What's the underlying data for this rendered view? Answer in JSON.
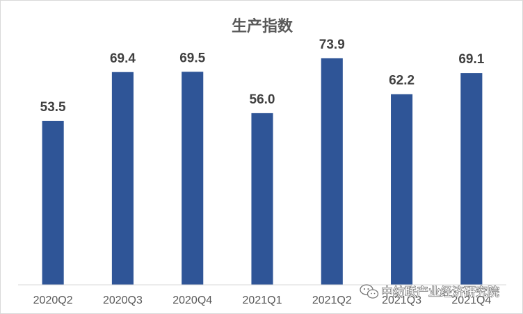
{
  "chart_data": {
    "type": "bar",
    "title": "生产指数",
    "categories": [
      "2020Q2",
      "2020Q3",
      "2020Q4",
      "2021Q1",
      "2021Q2",
      "2021Q3",
      "2021Q4"
    ],
    "values": [
      53.5,
      69.4,
      69.5,
      56.0,
      73.9,
      62.2,
      69.1
    ],
    "value_labels": [
      "53.5",
      "69.4",
      "69.5",
      "56.0",
      "73.9",
      "62.2",
      "69.1"
    ],
    "xlabel": "",
    "ylabel": "",
    "ylim": [
      0,
      80
    ],
    "grid": false,
    "legend": "none",
    "bar_color": "#2F5597"
  },
  "watermark": {
    "text": "中纺联产业经济研究院",
    "icon": "wechat-icon"
  }
}
